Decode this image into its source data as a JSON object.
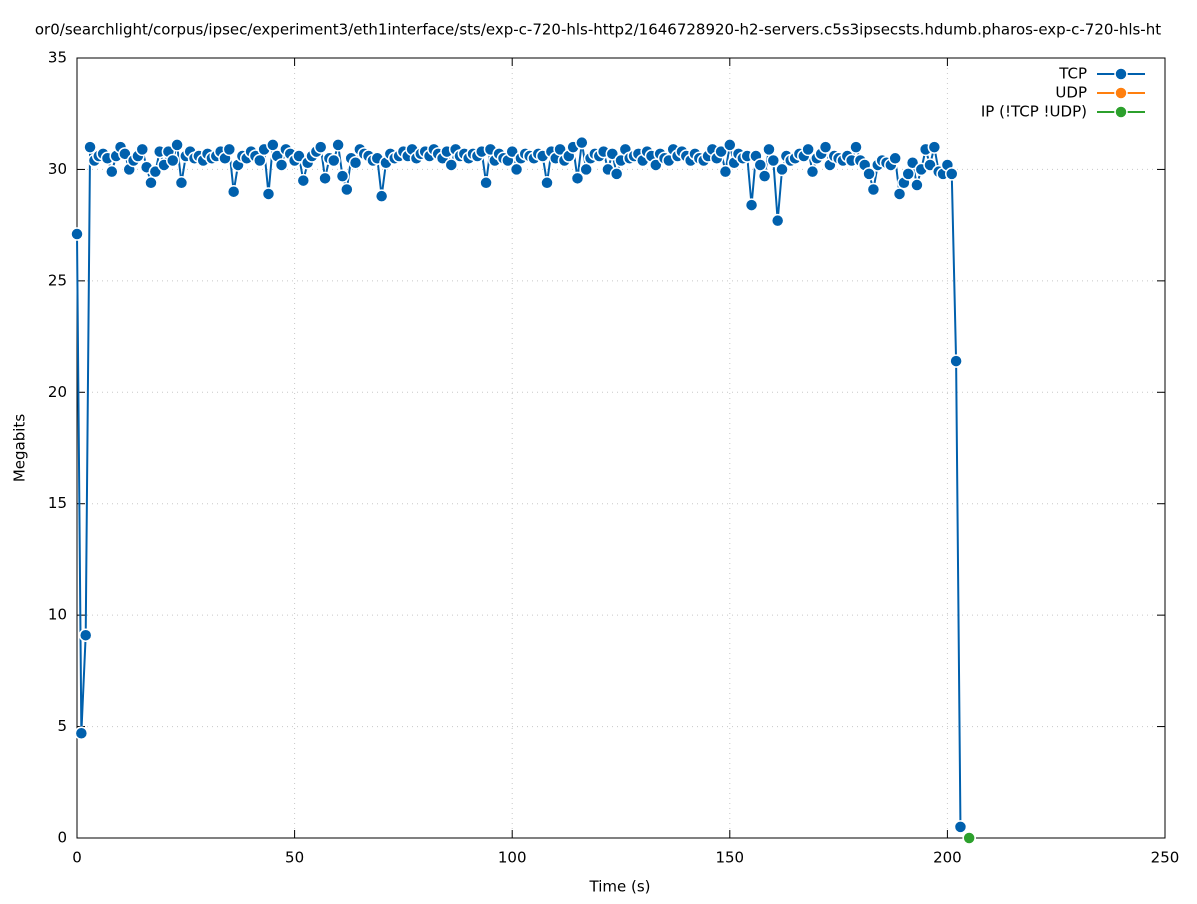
{
  "chart_data": {
    "type": "line",
    "title": "or0/searchlight/corpus/ipsec/experiment3/eth1interface/sts/exp-c-720-hls-http2/1646728920-h2-servers.c5s3ipsecsts.hdumb.pharos-exp-c-720-hls-ht",
    "xlabel": "Time (s)",
    "ylabel": "Megabits",
    "xlim": [
      0,
      250
    ],
    "xticks": [
      0,
      50,
      100,
      150,
      200,
      250
    ],
    "ylim": [
      0,
      35
    ],
    "yticks": [
      0,
      5,
      10,
      15,
      20,
      25,
      30,
      35
    ],
    "grid": true,
    "legend": "top-right",
    "series": [
      {
        "name": "TCP",
        "color": "#0060ad",
        "x": [
          0,
          1,
          2,
          3,
          4,
          5,
          6,
          7,
          8,
          9,
          10,
          11,
          12,
          13,
          14,
          15,
          16,
          17,
          18,
          19,
          20,
          21,
          22,
          23,
          24,
          25,
          26,
          27,
          28,
          29,
          30,
          31,
          32,
          33,
          34,
          35,
          36,
          37,
          38,
          39,
          40,
          41,
          42,
          43,
          44,
          45,
          46,
          47,
          48,
          49,
          50,
          51,
          52,
          53,
          54,
          55,
          56,
          57,
          58,
          59,
          60,
          61,
          62,
          63,
          64,
          65,
          66,
          67,
          68,
          69,
          70,
          71,
          72,
          73,
          74,
          75,
          76,
          77,
          78,
          79,
          80,
          81,
          82,
          83,
          84,
          85,
          86,
          87,
          88,
          89,
          90,
          91,
          92,
          93,
          94,
          95,
          96,
          97,
          98,
          99,
          100,
          101,
          102,
          103,
          104,
          105,
          106,
          107,
          108,
          109,
          110,
          111,
          112,
          113,
          114,
          115,
          116,
          117,
          118,
          119,
          120,
          121,
          122,
          123,
          124,
          125,
          126,
          127,
          128,
          129,
          130,
          131,
          132,
          133,
          134,
          135,
          136,
          137,
          138,
          139,
          140,
          141,
          142,
          143,
          144,
          145,
          146,
          147,
          148,
          149,
          150,
          151,
          152,
          153,
          154,
          155,
          156,
          157,
          158,
          159,
          160,
          161,
          162,
          163,
          164,
          165,
          166,
          167,
          168,
          169,
          170,
          171,
          172,
          173,
          174,
          175,
          176,
          177,
          178,
          179,
          180,
          181,
          182,
          183,
          184,
          185,
          186,
          187,
          188,
          189,
          190,
          191,
          192,
          193,
          194,
          195,
          196,
          197,
          198,
          199,
          200,
          201,
          202,
          203
        ],
        "values": [
          27.1,
          4.7,
          9.1,
          31.0,
          30.4,
          30.6,
          30.7,
          30.5,
          29.9,
          30.6,
          31.0,
          30.7,
          30.0,
          30.4,
          30.6,
          30.9,
          30.1,
          29.4,
          29.9,
          30.8,
          30.2,
          30.8,
          30.4,
          31.1,
          29.4,
          30.6,
          30.8,
          30.5,
          30.6,
          30.4,
          30.7,
          30.5,
          30.6,
          30.8,
          30.5,
          30.9,
          29.0,
          30.2,
          30.6,
          30.5,
          30.8,
          30.6,
          30.4,
          30.9,
          28.9,
          31.1,
          30.6,
          30.2,
          30.9,
          30.7,
          30.4,
          30.6,
          29.5,
          30.3,
          30.6,
          30.8,
          31.0,
          29.6,
          30.5,
          30.4,
          31.1,
          29.7,
          29.1,
          30.5,
          30.3,
          30.9,
          30.7,
          30.6,
          30.4,
          30.5,
          28.8,
          30.3,
          30.7,
          30.5,
          30.6,
          30.8,
          30.6,
          30.9,
          30.5,
          30.7,
          30.8,
          30.6,
          30.9,
          30.7,
          30.5,
          30.8,
          30.2,
          30.9,
          30.6,
          30.7,
          30.5,
          30.7,
          30.6,
          30.8,
          29.4,
          30.9,
          30.4,
          30.7,
          30.5,
          30.4,
          30.8,
          30.0,
          30.5,
          30.7,
          30.6,
          30.5,
          30.7,
          30.6,
          29.4,
          30.8,
          30.5,
          30.9,
          30.4,
          30.6,
          31.0,
          29.6,
          31.2,
          30.0,
          30.5,
          30.7,
          30.6,
          30.8,
          30.0,
          30.7,
          29.8,
          30.4,
          30.9,
          30.5,
          30.6,
          30.7,
          30.4,
          30.8,
          30.6,
          30.2,
          30.7,
          30.5,
          30.4,
          30.9,
          30.6,
          30.8,
          30.6,
          30.4,
          30.7,
          30.5,
          30.4,
          30.6,
          30.9,
          30.5,
          30.8,
          29.9,
          31.1,
          30.3,
          30.7,
          30.5,
          30.6,
          28.4,
          30.6,
          30.2,
          29.7,
          30.9,
          30.4,
          27.7,
          30.0,
          30.6,
          30.4,
          30.5,
          30.7,
          30.6,
          30.9,
          29.9,
          30.5,
          30.7,
          31.0,
          30.2,
          30.6,
          30.5,
          30.4,
          30.6,
          30.4,
          31.0,
          30.4,
          30.2,
          29.8,
          29.1,
          30.2,
          30.4,
          30.3,
          30.2,
          30.5,
          28.9,
          29.4,
          29.8,
          30.3,
          29.3,
          30.0,
          30.9,
          30.2,
          31.0,
          29.9,
          29.8,
          30.2,
          29.8,
          21.4,
          0.5
        ]
      },
      {
        "name": "UDP",
        "color": "#ff7f0e",
        "x": [
          205
        ],
        "values": [
          0
        ]
      },
      {
        "name": "IP (!TCP  !UDP)",
        "color": "#2ca02c",
        "x": [
          205
        ],
        "values": [
          0
        ]
      }
    ]
  }
}
